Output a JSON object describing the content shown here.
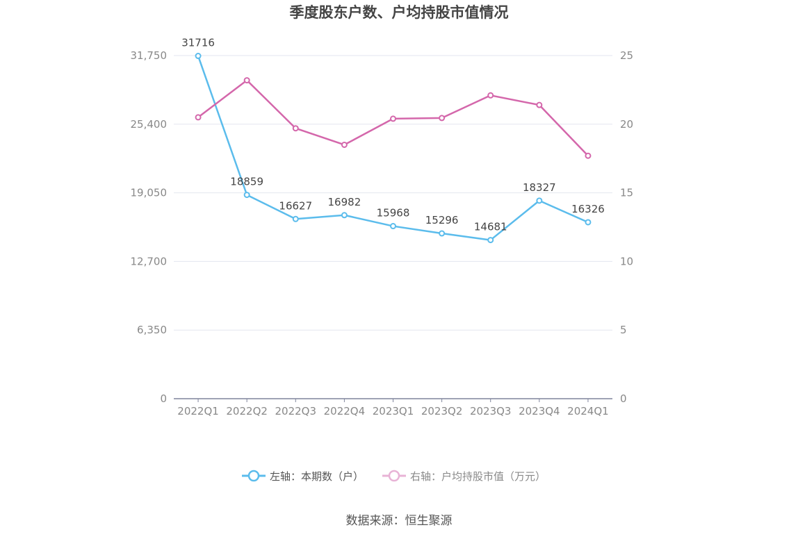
{
  "chart_data": {
    "type": "line",
    "title": "季度股东户数、户均持股市值情况",
    "categories": [
      "2022Q1",
      "2022Q2",
      "2022Q3",
      "2022Q4",
      "2023Q1",
      "2023Q2",
      "2023Q3",
      "2023Q4",
      "2024Q1"
    ],
    "left_axis": {
      "ticks": [
        "0",
        "6,350",
        "12,700",
        "19,050",
        "25,400",
        "31,750"
      ],
      "ylim": [
        0,
        31750
      ]
    },
    "right_axis": {
      "ticks": [
        "0",
        "5",
        "10",
        "15",
        "20",
        "25"
      ],
      "ylim": [
        0,
        25
      ]
    },
    "series": [
      {
        "name": "左轴：本期数（户）",
        "axis": "left",
        "color": "#5bbcec",
        "values": [
          31716,
          18859,
          16627,
          16982,
          15968,
          15296,
          14681,
          18327,
          16326
        ],
        "labels": [
          "31716",
          "18859",
          "16627",
          "16982",
          "15968",
          "15296",
          "14681",
          "18327",
          "16326"
        ]
      },
      {
        "name": "右轴：户均持股市值（万元）",
        "axis": "right",
        "color": "#d467ab",
        "values": [
          20.5,
          23.2,
          19.7,
          18.5,
          20.4,
          20.45,
          22.1,
          21.4,
          17.7
        ]
      }
    ],
    "grid": true,
    "legend_position": "bottom"
  },
  "source": "数据来源：恒生聚源"
}
